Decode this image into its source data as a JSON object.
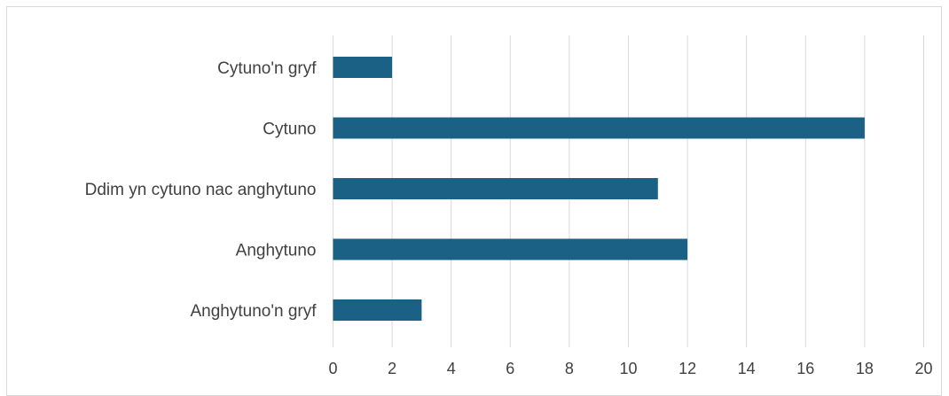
{
  "chart_data": {
    "type": "bar",
    "orientation": "horizontal",
    "categories": [
      "Cytuno'n gryf",
      "Cytuno",
      "Ddim yn cytuno nac anghytuno",
      "Anghytuno",
      "Anghytuno'n gryf"
    ],
    "values": [
      2,
      18,
      11,
      12,
      3
    ],
    "xlim": [
      0,
      20
    ],
    "xticks": [
      0,
      2,
      4,
      6,
      8,
      10,
      12,
      14,
      16,
      18,
      20
    ],
    "title": "",
    "xlabel": "",
    "ylabel": "",
    "grid": "vertical",
    "legend": "none",
    "colors": {
      "bar": "#1b6085",
      "grid": "#d9d9d9",
      "text": "#404040",
      "border": "#d9d9d9"
    }
  }
}
